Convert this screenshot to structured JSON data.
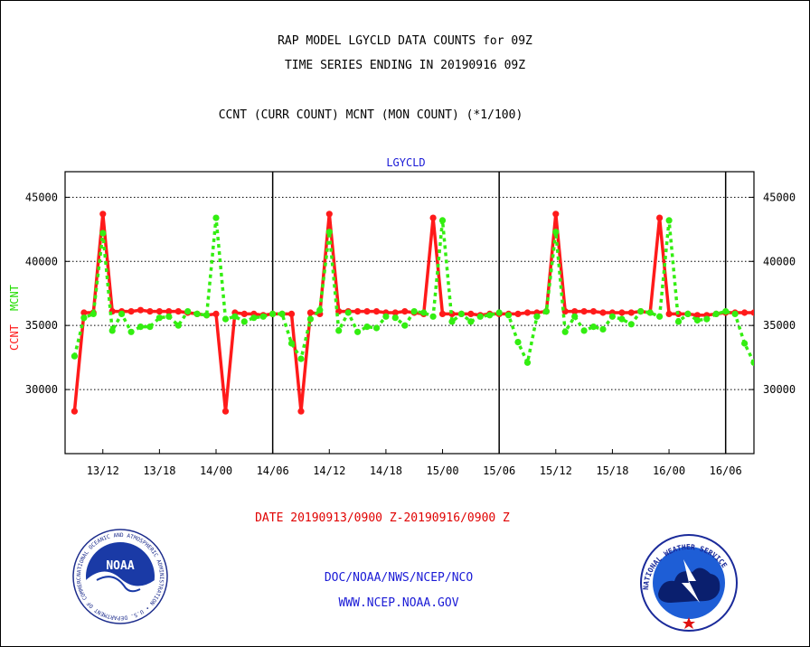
{
  "header": {
    "title_line1": "RAP MODEL LGYCLD DATA COUNTS for 09Z",
    "title_line2": "TIME SERIES ENDING IN 20190916 09Z",
    "title_line3": "CCNT (CURR COUNT) MCNT (MON COUNT) (*1/100)"
  },
  "footer": {
    "date_range": "DATE 20190913/0900 Z-20190916/0900 Z",
    "credit_line1": "DOC/NOAA/NWS/NCEP/NCO",
    "credit_line2": "WWW.NCEP.NOAA.GOV"
  },
  "logos": {
    "left_badge_text": "NOAA",
    "left_ring_text": "NATIONAL OCEANIC AND ATMOSPHERIC ADMINISTRATION • U.S. DEPARTMENT OF COMMERCE •",
    "right_ring_text": "NATIONAL WEATHER SERVICE"
  },
  "colors": {
    "ccnt": "#ff1a1a",
    "mcnt": "#33ee11",
    "panel_label": "#1a1ad6",
    "grid": "#000000"
  },
  "chart_data": {
    "type": "line",
    "title": "LGYCLD",
    "ylabel_series": [
      "CCNT",
      "MCNT"
    ],
    "ylim": [
      25000,
      47000
    ],
    "yticks": [
      30000,
      35000,
      40000,
      45000
    ],
    "ytick_labels": [
      "30000",
      "35000",
      "40000",
      "45000"
    ],
    "x_hours_range": [
      -1,
      72
    ],
    "xticks_hours": [
      3,
      9,
      15,
      21,
      27,
      33,
      39,
      45,
      51,
      57,
      63,
      69
    ],
    "xtick_labels": [
      "13/12",
      "13/18",
      "14/00",
      "14/06",
      "14/12",
      "14/18",
      "15/00",
      "15/06",
      "15/12",
      "15/18",
      "16/00",
      "16/06"
    ],
    "day_dividers_hours": [
      21,
      45,
      69
    ],
    "grid": true,
    "series": [
      {
        "name": "CCNT",
        "style": "solid",
        "x": [
          0,
          1,
          2,
          3,
          4,
          5,
          6,
          7,
          8,
          9,
          10,
          11,
          12,
          13,
          14,
          15,
          16,
          17,
          18,
          19,
          20,
          21,
          22,
          23,
          24,
          25,
          26,
          27,
          28,
          29,
          30,
          31,
          32,
          33,
          34,
          35,
          36,
          37,
          38,
          39,
          40,
          41,
          42,
          43,
          44,
          45,
          46,
          47,
          48,
          49,
          50,
          51,
          52,
          53,
          54,
          55,
          56,
          57,
          58,
          59,
          60,
          61,
          62,
          63,
          64,
          65,
          66,
          67,
          68,
          69,
          70,
          71,
          72
        ],
        "values": [
          28300,
          36000,
          36000,
          43700,
          36100,
          36100,
          36100,
          36200,
          36100,
          36100,
          36100,
          36100,
          36000,
          35900,
          35800,
          35900,
          28300,
          36000,
          35900,
          35900,
          35800,
          35900,
          35900,
          35900,
          28300,
          36000,
          35900,
          43700,
          36100,
          36100,
          36100,
          36100,
          36100,
          36000,
          36000,
          36100,
          36000,
          35900,
          43400,
          35900,
          35900,
          35900,
          35900,
          35800,
          35900,
          35900,
          35900,
          35900,
          36000,
          36000,
          36100,
          43700,
          36100,
          36100,
          36100,
          36100,
          36000,
          36000,
          36000,
          36000,
          36100,
          36000,
          43400,
          35900,
          35900,
          35900,
          35800,
          35800,
          35900,
          36000,
          36000,
          36000,
          36000
        ]
      },
      {
        "name": "MCNT",
        "style": "dotted",
        "x": [
          0,
          1,
          2,
          3,
          4,
          5,
          6,
          7,
          8,
          9,
          10,
          11,
          12,
          13,
          14,
          15,
          16,
          17,
          18,
          19,
          20,
          21,
          22,
          23,
          24,
          25,
          26,
          27,
          28,
          29,
          30,
          31,
          32,
          33,
          34,
          35,
          36,
          37,
          38,
          39,
          40,
          41,
          42,
          43,
          44,
          45,
          46,
          47,
          48,
          49,
          50,
          51,
          52,
          53,
          54,
          55,
          56,
          57,
          58,
          59,
          60,
          61,
          62,
          63,
          64,
          65,
          66,
          67,
          68,
          69,
          70,
          71,
          72
        ],
        "values": [
          32600,
          35600,
          35900,
          42200,
          34600,
          35900,
          34500,
          34900,
          34900,
          35600,
          35700,
          35000,
          36100,
          35900,
          35800,
          43400,
          35500,
          35700,
          35300,
          35600,
          35700,
          35900,
          35900,
          33600,
          32400,
          35500,
          36200,
          42300,
          34600,
          36000,
          34500,
          34900,
          34800,
          35700,
          35600,
          35000,
          36100,
          36000,
          35700,
          43200,
          35300,
          35900,
          35300,
          35700,
          35800,
          36000,
          35800,
          33700,
          32100,
          35700,
          36100,
          42300,
          34500,
          35700,
          34600,
          34900,
          34700,
          35700,
          35500,
          35100,
          36100,
          36000,
          35700,
          43200,
          35300,
          35900,
          35400,
          35500,
          35900,
          36100,
          35900,
          33600,
          32100
        ]
      }
    ]
  }
}
